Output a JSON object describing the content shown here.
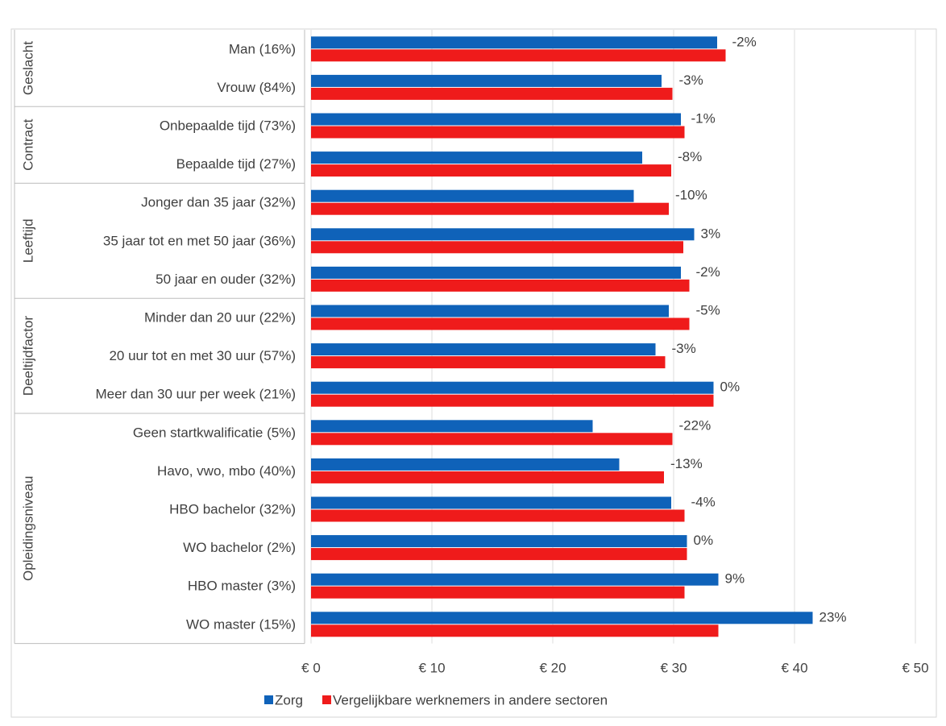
{
  "caption": "",
  "chart_data": {
    "type": "bar",
    "orientation": "horizontal",
    "groups": [
      {
        "label": "Geslacht",
        "rows": 2
      },
      {
        "label": "Contract",
        "rows": 2
      },
      {
        "label": "Leeftijd",
        "rows": 3
      },
      {
        "label": "Deeltijdfactor",
        "rows": 3
      },
      {
        "label": "Opleidingsniveau",
        "rows": 6
      }
    ],
    "categories": [
      "Man (16%)",
      "Vrouw (84%)",
      "Onbepaalde tijd (73%)",
      "Bepaalde tijd (27%)",
      "Jonger dan 35 jaar (32%)",
      "35 jaar tot en met 50 jaar (36%)",
      "50 jaar en ouder (32%)",
      "Minder dan 20 uur (22%)",
      "20 uur tot en met 30 uur (57%)",
      "Meer dan 30 uur per week (21%)",
      "Geen startkwalificatie (5%)",
      "Havo, vwo, mbo (40%)",
      "HBO bachelor (32%)",
      "WO bachelor (2%)",
      "HBO master (3%)",
      "WO master (15%)"
    ],
    "series": [
      {
        "name": "Zorg",
        "color": "#0f62b9",
        "values": [
          33.6,
          29.0,
          30.6,
          27.4,
          26.7,
          31.7,
          30.6,
          29.6,
          28.5,
          33.3,
          23.3,
          25.5,
          29.8,
          31.1,
          33.7,
          41.5
        ]
      },
      {
        "name": "Vergelijkbare werknemers in andere sectoren",
        "color": "#ef1b1b",
        "values": [
          34.3,
          29.9,
          30.9,
          29.8,
          29.6,
          30.8,
          31.3,
          31.3,
          29.3,
          33.3,
          29.9,
          29.2,
          30.9,
          31.1,
          30.9,
          33.7
        ]
      }
    ],
    "data_labels": [
      "-2%",
      "-3%",
      "-1%",
      "-8%",
      "-10%",
      "3%",
      "-2%",
      "-5%",
      "-3%",
      "0%",
      "-22%",
      "-13%",
      "-4%",
      "0%",
      "9%",
      "23%"
    ],
    "xaxis": {
      "ticks": [
        "€ 0",
        "€ 10",
        "€ 20",
        "€ 30",
        "€ 40",
        "€ 50"
      ],
      "xlim": [
        0,
        50
      ]
    },
    "xlabel": "",
    "ylabel": "",
    "title": "",
    "grid": true,
    "legend_position": "bottom"
  }
}
